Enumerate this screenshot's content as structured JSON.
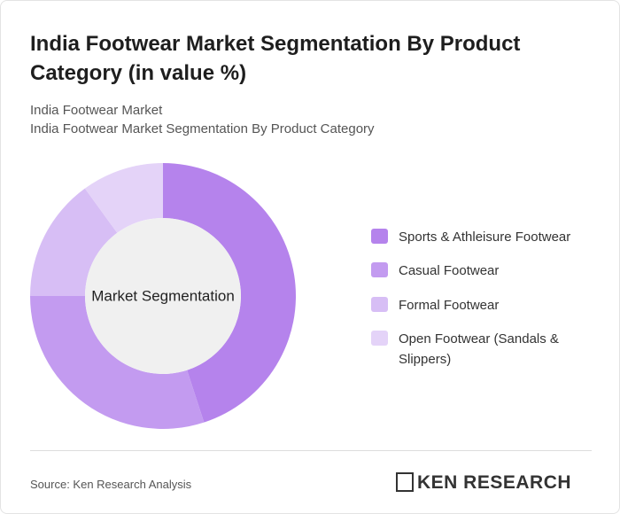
{
  "chart_data": {
    "type": "donut",
    "title": "India Footwear Market Segmentation By Product Category (in value %)",
    "subtitle": [
      "India Footwear Market",
      "India Footwear Market Segmentation By Product Category"
    ],
    "center_label": "Market Segmentation",
    "categories": [
      "Sports & Athleisure Footwear",
      "Casual Footwear",
      "Formal Footwear",
      "Open Footwear (Sandals & Slippers)"
    ],
    "values": [
      45,
      30,
      15,
      10
    ],
    "colors": [
      "#b583ec",
      "#c39bf0",
      "#d7bef5",
      "#e4d3f8"
    ]
  },
  "source": "Source: Ken Research Analysis",
  "brand": "KEN RESEARCH"
}
